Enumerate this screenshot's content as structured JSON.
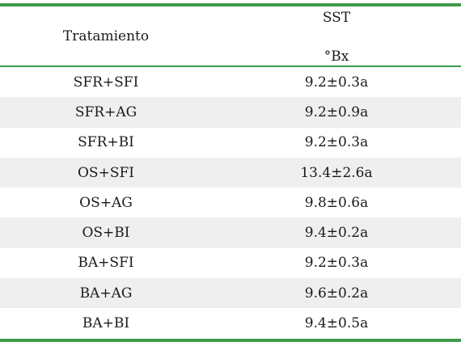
{
  "header": {
    "col1": "Tratamiento",
    "col2_top": "SST",
    "col2_bottom": "°Bx"
  },
  "rows": [
    {
      "treatment": "SFR+SFI",
      "value": "9.2±0.3a"
    },
    {
      "treatment": "SFR+AG",
      "value": "9.2±0.9a"
    },
    {
      "treatment": "SFR+BI",
      "value": "9.2±0.3a"
    },
    {
      "treatment": "OS+SFI",
      "value": "13.4±2.6a"
    },
    {
      "treatment": "OS+AG",
      "value": "9.8±0.6a"
    },
    {
      "treatment": "OS+BI",
      "value": "9.4±0.2a"
    },
    {
      "treatment": "BA+SFI",
      "value": "9.2±0.3a"
    },
    {
      "treatment": "BA+AG",
      "value": "9.6±0.2a"
    },
    {
      "treatment": "BA+BI",
      "value": "9.4±0.5a"
    }
  ],
  "colors": {
    "rule": "#3f9b4a",
    "shade": "#efefef"
  }
}
